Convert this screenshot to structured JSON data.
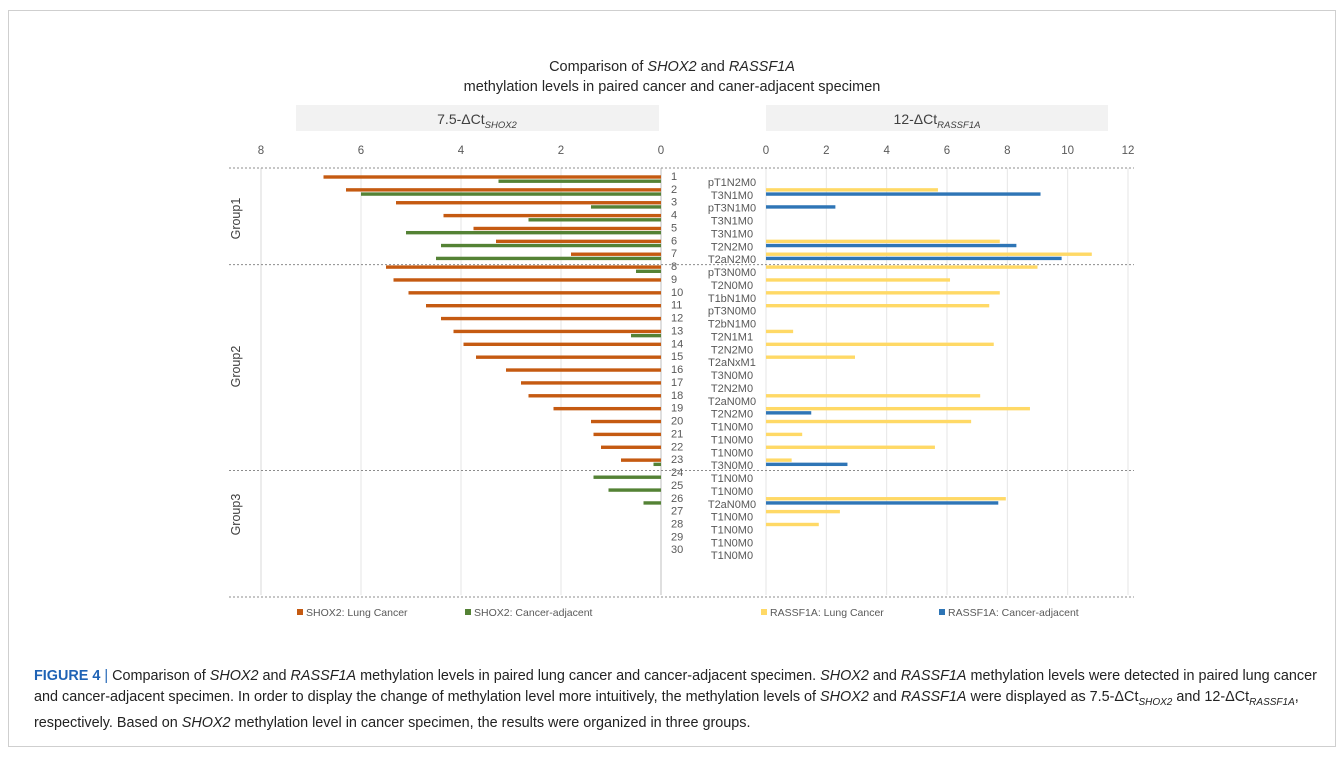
{
  "chart_data": {
    "type": "bar",
    "title_parts": {
      "line1_pre": "Comparison of ",
      "gene1": "SHOX2",
      "line1_mid": " and ",
      "gene2": "RASSF1A",
      "line2": "methylation levels in paired cancer and caner-adjacent specimen"
    },
    "left_panel": {
      "label_main": "7.5-ΔCt",
      "label_sub": "SHOX2",
      "xlim": [
        8,
        0
      ],
      "ticks": [
        "8",
        "6",
        "4",
        "2",
        "0"
      ],
      "series": [
        {
          "name": "SHOX2: Lung Cancer",
          "color": "#c55a11"
        },
        {
          "name": "SHOX2: Cancer-adjacent",
          "color": "#548235"
        }
      ]
    },
    "right_panel": {
      "label_main": "12-ΔCt",
      "label_sub": "RASSF1A",
      "xlim": [
        0,
        12
      ],
      "ticks": [
        "0",
        "2",
        "4",
        "6",
        "8",
        "10",
        "12"
      ],
      "series": [
        {
          "name": "RASSF1A: Lung Cancer",
          "color": "#ffd966"
        },
        {
          "name": "RASSF1A: Cancer-adjacent",
          "color": "#2e75b6"
        }
      ]
    },
    "groups": [
      {
        "label": "Group1",
        "first": 1,
        "last": 7
      },
      {
        "label": "Group2",
        "first": 8,
        "last": 23
      },
      {
        "label": "Group3",
        "first": 24,
        "last": 30
      }
    ],
    "samples": [
      {
        "id": "1",
        "stage": "pT1N2M0",
        "shox2_cancer": 6.75,
        "shox2_adjacent": 3.25,
        "rassf1a_cancer": 0,
        "rassf1a_adjacent": 0
      },
      {
        "id": "2",
        "stage": "T3N1M0",
        "shox2_cancer": 6.3,
        "shox2_adjacent": 6.0,
        "rassf1a_cancer": 5.7,
        "rassf1a_adjacent": 9.1
      },
      {
        "id": "3",
        "stage": "pT3N1M0",
        "shox2_cancer": 5.3,
        "shox2_adjacent": 1.4,
        "rassf1a_cancer": 0,
        "rassf1a_adjacent": 2.3
      },
      {
        "id": "4",
        "stage": "T3N1M0",
        "shox2_cancer": 4.35,
        "shox2_adjacent": 2.65,
        "rassf1a_cancer": 0,
        "rassf1a_adjacent": 0
      },
      {
        "id": "5",
        "stage": "T3N1M0",
        "shox2_cancer": 3.75,
        "shox2_adjacent": 5.1,
        "rassf1a_cancer": 0,
        "rassf1a_adjacent": 0
      },
      {
        "id": "6",
        "stage": "T2N2M0",
        "shox2_cancer": 3.3,
        "shox2_adjacent": 4.4,
        "rassf1a_cancer": 7.75,
        "rassf1a_adjacent": 8.3
      },
      {
        "id": "7",
        "stage": "T2aN2M0",
        "shox2_cancer": 1.8,
        "shox2_adjacent": 4.5,
        "rassf1a_cancer": 10.8,
        "rassf1a_adjacent": 9.8
      },
      {
        "id": "8",
        "stage": "pT3N0M0",
        "shox2_cancer": 5.5,
        "shox2_adjacent": 0.5,
        "rassf1a_cancer": 9.0,
        "rassf1a_adjacent": 0
      },
      {
        "id": "9",
        "stage": "T2N0M0",
        "shox2_cancer": 5.35,
        "shox2_adjacent": 0,
        "rassf1a_cancer": 6.1,
        "rassf1a_adjacent": 0
      },
      {
        "id": "10",
        "stage": "T1bN1M0",
        "shox2_cancer": 5.05,
        "shox2_adjacent": 0,
        "rassf1a_cancer": 7.75,
        "rassf1a_adjacent": 0
      },
      {
        "id": "11",
        "stage": "pT3N0M0",
        "shox2_cancer": 4.7,
        "shox2_adjacent": 0,
        "rassf1a_cancer": 7.4,
        "rassf1a_adjacent": 0
      },
      {
        "id": "12",
        "stage": "T2bN1M0",
        "shox2_cancer": 4.4,
        "shox2_adjacent": 0,
        "rassf1a_cancer": 0,
        "rassf1a_adjacent": 0
      },
      {
        "id": "13",
        "stage": "T2N1M1",
        "shox2_cancer": 4.15,
        "shox2_adjacent": 0.6,
        "rassf1a_cancer": 0.9,
        "rassf1a_adjacent": 0
      },
      {
        "id": "14",
        "stage": "T2N2M0",
        "shox2_cancer": 3.95,
        "shox2_adjacent": 0,
        "rassf1a_cancer": 7.55,
        "rassf1a_adjacent": 0
      },
      {
        "id": "15",
        "stage": "T2aNxM1",
        "shox2_cancer": 3.7,
        "shox2_adjacent": 0,
        "rassf1a_cancer": 2.95,
        "rassf1a_adjacent": 0
      },
      {
        "id": "16",
        "stage": "T3N0M0",
        "shox2_cancer": 3.1,
        "shox2_adjacent": 0,
        "rassf1a_cancer": 0,
        "rassf1a_adjacent": 0
      },
      {
        "id": "17",
        "stage": "T2N2M0",
        "shox2_cancer": 2.8,
        "shox2_adjacent": 0,
        "rassf1a_cancer": 0,
        "rassf1a_adjacent": 0
      },
      {
        "id": "18",
        "stage": "T2aN0M0",
        "shox2_cancer": 2.65,
        "shox2_adjacent": 0,
        "rassf1a_cancer": 7.1,
        "rassf1a_adjacent": 0
      },
      {
        "id": "19",
        "stage": "T2N2M0",
        "shox2_cancer": 2.15,
        "shox2_adjacent": 0,
        "rassf1a_cancer": 8.75,
        "rassf1a_adjacent": 1.5
      },
      {
        "id": "20",
        "stage": "T1N0M0",
        "shox2_cancer": 1.4,
        "shox2_adjacent": 0,
        "rassf1a_cancer": 6.8,
        "rassf1a_adjacent": 0
      },
      {
        "id": "21",
        "stage": "T1N0M0",
        "shox2_cancer": 1.35,
        "shox2_adjacent": 0,
        "rassf1a_cancer": 1.2,
        "rassf1a_adjacent": 0
      },
      {
        "id": "22",
        "stage": "T1N0M0",
        "shox2_cancer": 1.2,
        "shox2_adjacent": 0,
        "rassf1a_cancer": 5.6,
        "rassf1a_adjacent": 0
      },
      {
        "id": "23",
        "stage": "T3N0M0",
        "shox2_cancer": 0.8,
        "shox2_adjacent": 0.15,
        "rassf1a_cancer": 0.85,
        "rassf1a_adjacent": 2.7
      },
      {
        "id": "24",
        "stage": "T1N0M0",
        "shox2_cancer": 0,
        "shox2_adjacent": 1.35,
        "rassf1a_cancer": 0,
        "rassf1a_adjacent": 0
      },
      {
        "id": "25",
        "stage": "T1N0M0",
        "shox2_cancer": 0,
        "shox2_adjacent": 1.05,
        "rassf1a_cancer": 0,
        "rassf1a_adjacent": 0
      },
      {
        "id": "26",
        "stage": "T2aN0M0",
        "shox2_cancer": 0,
        "shox2_adjacent": 0.35,
        "rassf1a_cancer": 7.95,
        "rassf1a_adjacent": 7.7
      },
      {
        "id": "27",
        "stage": "T1N0M0",
        "shox2_cancer": 0,
        "shox2_adjacent": 0,
        "rassf1a_cancer": 2.45,
        "rassf1a_adjacent": 0
      },
      {
        "id": "28",
        "stage": "T1N0M0",
        "shox2_cancer": 0,
        "shox2_adjacent": 0,
        "rassf1a_cancer": 1.75,
        "rassf1a_adjacent": 0
      },
      {
        "id": "29",
        "stage": "T1N0M0",
        "shox2_cancer": 0,
        "shox2_adjacent": 0,
        "rassf1a_cancer": 0,
        "rassf1a_adjacent": 0
      },
      {
        "id": "30",
        "stage": "T1N0M0",
        "shox2_cancer": 0,
        "shox2_adjacent": 0,
        "rassf1a_cancer": 0,
        "rassf1a_adjacent": 0
      }
    ]
  },
  "caption": {
    "lead": "FIGURE 4",
    "sep": " | ",
    "t1": "Comparison of ",
    "g1": "SHOX2",
    "t2": " and ",
    "g2": "RASSF1A",
    "t3": " methylation levels in paired lung cancer and cancer-adjacent specimen. ",
    "g3": "SHOX2",
    "t4": " and ",
    "g4": "RASSF1A",
    "t5": " methylation levels were detected in paired lung cancer and cancer-adjacent specimen. In order to display the change of methylation level more intuitively, the methylation levels of ",
    "g5": "SHOX2",
    "t6": " and ",
    "g6": "RASSF1A",
    "t7": " were displayed as 7.5-ΔCt",
    "s1": "SHOX2",
    "t8": " and 12-ΔCt",
    "s2": "RASSF1A",
    "t9": ", respectively. Based on ",
    "g7": "SHOX2",
    "t10": " methylation level in cancer specimen, the results were organized in three groups."
  }
}
